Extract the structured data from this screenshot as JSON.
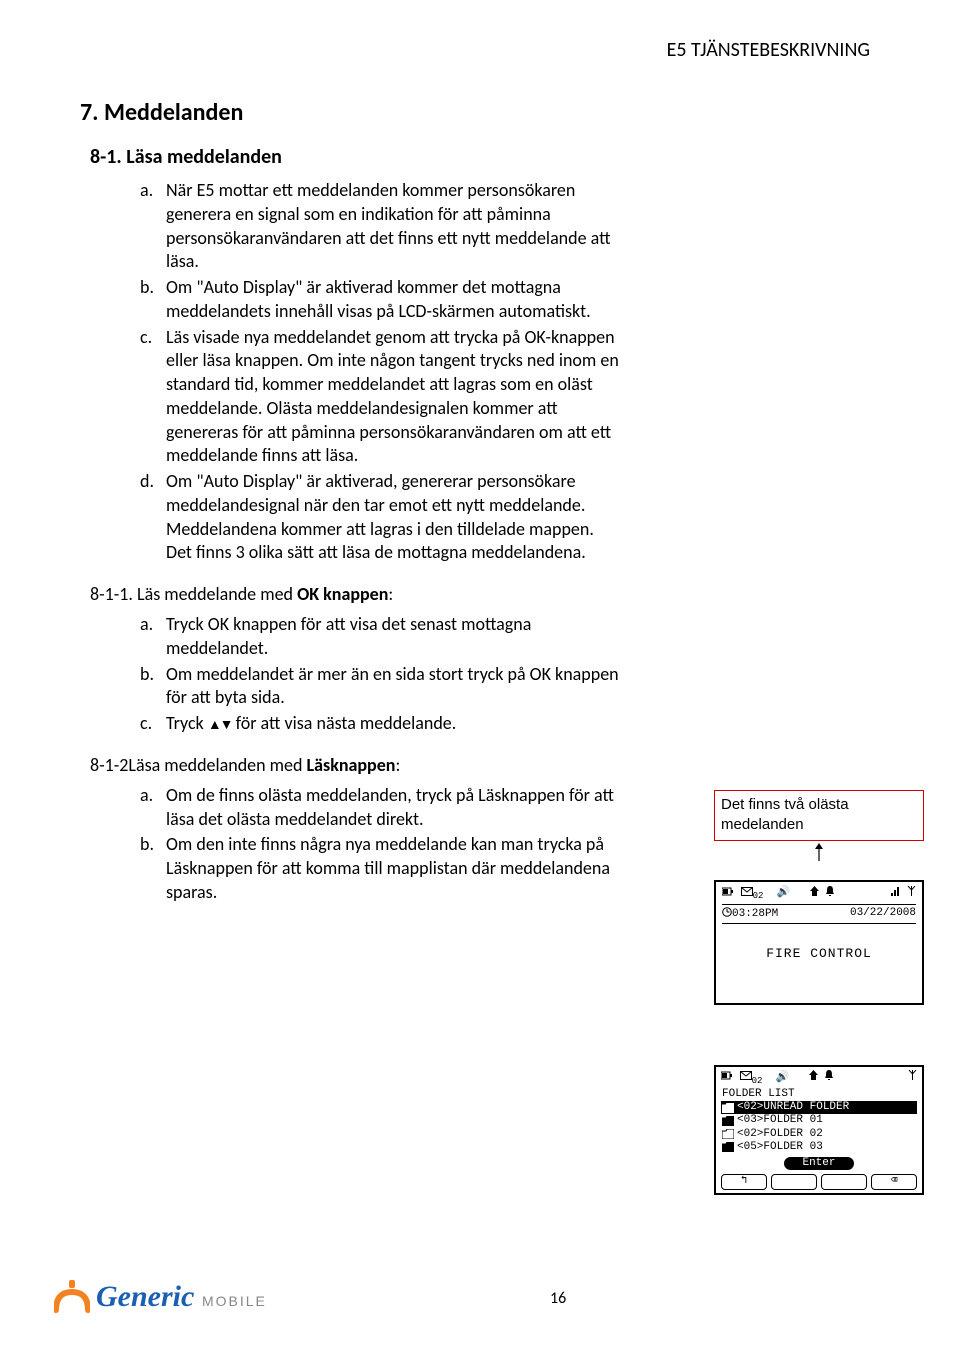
{
  "header": {
    "right": "E5 TJÄNSTEBESKRIVNING"
  },
  "section7": {
    "title": "7. Meddelanden",
    "s81": {
      "title": "8-1. Läsa meddelanden",
      "items": {
        "a": "När E5 mottar ett meddelanden kommer personsökaren generera en signal som en indikation för att påminna personsökaranvändaren att det finns ett nytt meddelande att läsa.",
        "b": "Om \"Auto Display\" är aktiverad kommer det mottagna meddelandets innehåll visas på LCD-skärmen automatiskt.",
        "c": "Läs visade nya meddelandet genom att trycka på OK-knappen eller läsa knappen. Om inte någon tangent trycks ned inom en standard tid, kommer meddelandet att lagras som en oläst meddelande. Olästa meddelandesignalen kommer att genereras för att påminna personsökaranvändaren om att ett meddelande finns att läsa.",
        "d": "Om \"Auto Display\" är aktiverad, genererar personsökare meddelandesignal när den tar emot ett nytt meddelande. Meddelandena kommer att lagras i den tilldelade mappen. Det finns 3 olika sätt att läsa de mottagna meddelandena."
      }
    },
    "s811": {
      "title_pre": "8-1-1. Läs meddelande med ",
      "title_bold": "OK knappen",
      "title_post": ":",
      "items": {
        "a": "Tryck OK knappen för att visa det senast mottagna meddelandet.",
        "b": "Om meddelandet är mer än en sida stort tryck på OK knappen för att byta sida.",
        "c_pre": "Tryck ",
        "c_post": " för att visa nästa meddelande."
      }
    },
    "s812": {
      "title_pre": "8-1-2Läsa meddelanden med ",
      "title_bold": "Läsknappen",
      "title_post": ":",
      "items": {
        "a": "Om de finns olästa meddelanden, tryck på Läsknappen för att läsa det olästa meddelandet direkt.",
        "b": "Om den inte finns några nya meddelande kan man trycka på Läsknappen för att komma till mapplistan där meddelandena sparas."
      }
    }
  },
  "callout": {
    "line1": "Det finns två olästa",
    "line2": "medelanden",
    "box_border_color": "#d00000"
  },
  "lcd1": {
    "status_left": "02",
    "time": "03:28PM",
    "date": "03/22/2008",
    "body": "FIRE CONTROL"
  },
  "lcd2": {
    "status_left": "02",
    "title": "FOLDER LIST",
    "items": [
      {
        "label": "<02>UNREAD FOLDER",
        "filled": true,
        "selected": true
      },
      {
        "label": "<03>FOLDER 01",
        "filled": true,
        "selected": false
      },
      {
        "label": "<02>FOLDER 02",
        "filled": false,
        "selected": false
      },
      {
        "label": "<05>FOLDER 03",
        "filled": true,
        "selected": false
      }
    ],
    "enter": "Enter",
    "softkeys": [
      "↰",
      "",
      "",
      "⌫"
    ]
  },
  "footer": {
    "brand": "Generic",
    "brand_sub": "MOBILE",
    "brand_color": "#1a5fb4",
    "brand_accent": "#f58220",
    "page": "16"
  }
}
